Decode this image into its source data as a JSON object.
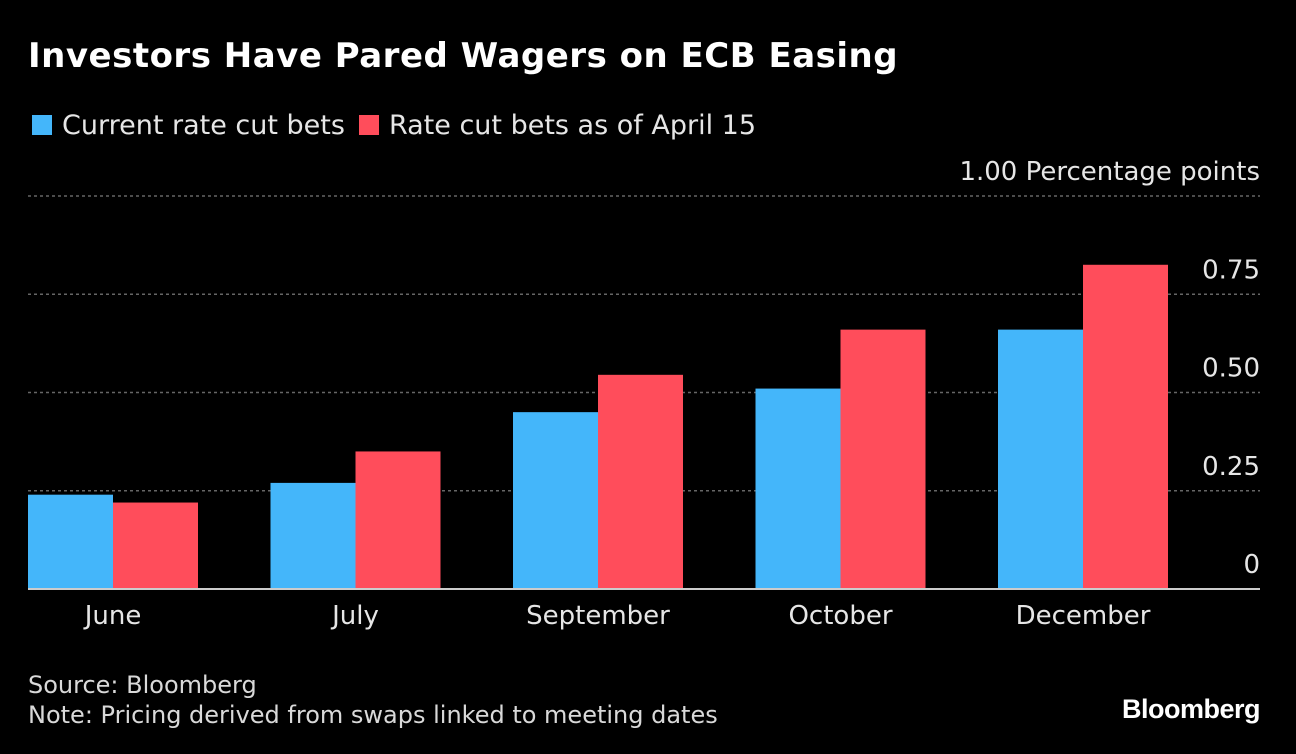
{
  "title": "Investors Have Pared Wagers on ECB Easing",
  "legend": {
    "current_label": "Current rate cut bets",
    "april_label": "Rate cut bets as of April 15"
  },
  "colors": {
    "background": "#000000",
    "current": "#44b6fa",
    "april": "#ff4d5b",
    "grid": "#666666",
    "text": "#e6e6e6"
  },
  "footer": {
    "source": "Source: Bloomberg",
    "note": "Note: Pricing derived from swaps linked to meeting dates"
  },
  "logo": "Bloomberg",
  "chart_data": {
    "type": "bar",
    "categories": [
      "June",
      "July",
      "September",
      "October",
      "December"
    ],
    "series": [
      {
        "name": "Current rate cut bets",
        "values": [
          0.24,
          0.27,
          0.45,
          0.51,
          0.66
        ]
      },
      {
        "name": "Rate cut bets as of April 15",
        "values": [
          0.22,
          0.35,
          0.545,
          0.66,
          0.825
        ]
      }
    ],
    "yticks": [
      {
        "value": 0,
        "label": "0"
      },
      {
        "value": 0.25,
        "label": "0.25"
      },
      {
        "value": 0.5,
        "label": "0.50"
      },
      {
        "value": 0.75,
        "label": "0.75"
      },
      {
        "value": 1.0,
        "label": "1.00 Percentage points"
      }
    ],
    "ylim": [
      0,
      1.0
    ],
    "grid": true,
    "legend_position": "top-left"
  }
}
